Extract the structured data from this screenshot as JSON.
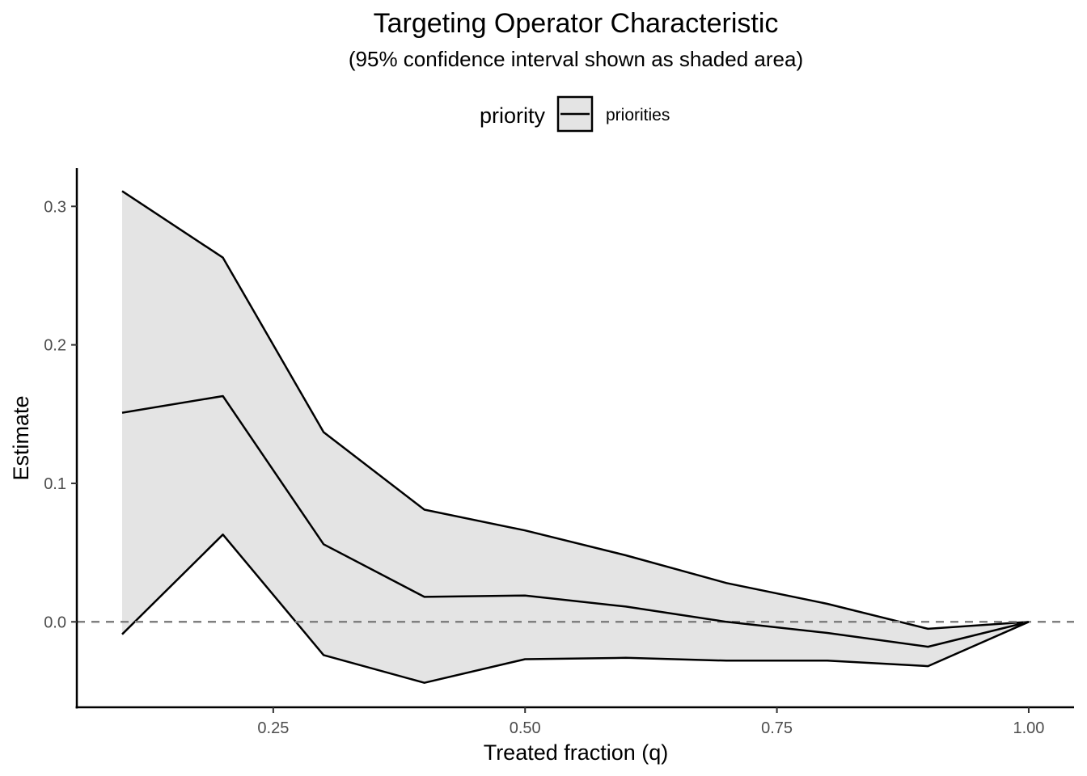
{
  "chart_data": {
    "type": "area",
    "title": "Targeting Operator Characteristic",
    "subtitle": "(95% confidence interval shown as shaded area)",
    "xlabel": "Treated fraction (q)",
    "ylabel": "Estimate",
    "xlim": [
      0.055,
      1.045
    ],
    "ylim": [
      -0.0617,
      0.3276
    ],
    "x_ticks": [
      "0.25",
      "0.50",
      "0.75",
      "1.00"
    ],
    "x_tick_values": [
      0.25,
      0.5,
      0.75,
      1.0
    ],
    "y_ticks": [
      "0.0",
      "0.1",
      "0.2",
      "0.3"
    ],
    "y_tick_values": [
      0.0,
      0.1,
      0.2,
      0.3
    ],
    "legend": {
      "title": "priority",
      "position": "top",
      "entries": [
        "priorities"
      ]
    },
    "reference_line": {
      "y": 0,
      "style": "dashed"
    },
    "grid": false,
    "series": [
      {
        "name": "priorities",
        "x": [
          0.1,
          0.2,
          0.3,
          0.4,
          0.5,
          0.6,
          0.7,
          0.8,
          0.9,
          1.0
        ],
        "estimate": [
          0.151,
          0.163,
          0.056,
          0.018,
          0.019,
          0.011,
          0.0,
          -0.008,
          -0.018,
          0.0
        ],
        "upper": [
          0.311,
          0.263,
          0.137,
          0.081,
          0.066,
          0.048,
          0.028,
          0.013,
          -0.005,
          0.0
        ],
        "lower": [
          -0.009,
          0.063,
          -0.024,
          -0.044,
          -0.027,
          -0.026,
          -0.028,
          -0.028,
          -0.032,
          0.0
        ]
      }
    ],
    "colors": {
      "ribbon": "#e4e4e4",
      "line": "#000000",
      "reference": "#808080"
    }
  }
}
